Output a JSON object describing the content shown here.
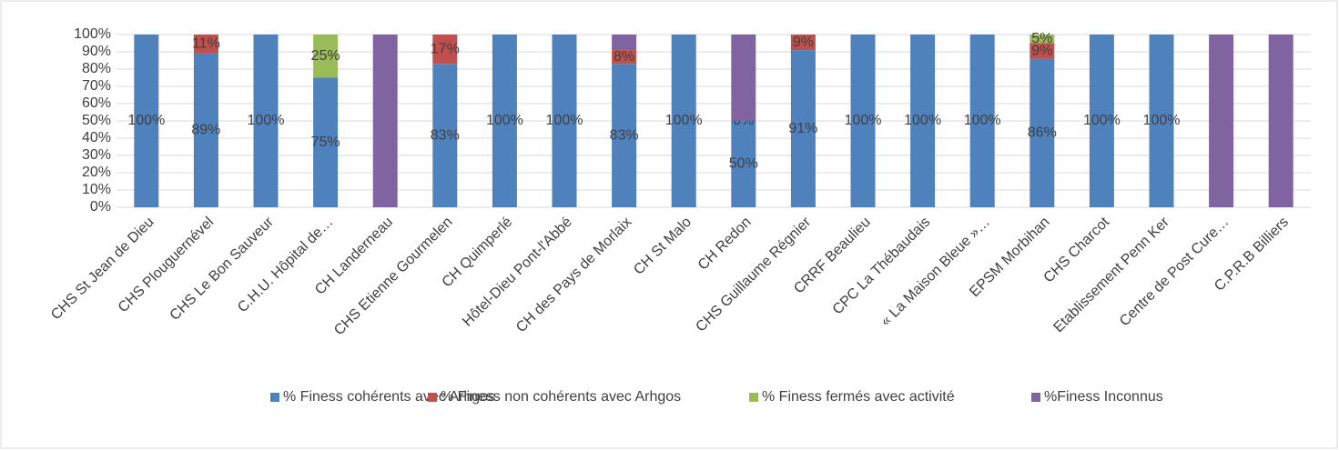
{
  "chart_data": {
    "type": "stacked_bar",
    "categories": [
      "CHS St Jean de Dieu",
      "CHS Plouguernével",
      "CHS Le Bon Sauveur",
      "C.H.U. Hôpital de…",
      "CH Landerneau",
      "CHS Etienne Gourmelen",
      "CH Quimperlé",
      "Hôtel-Dieu Pont-l'Abbé",
      "CH des Pays de Morlaix",
      "CH St Malo",
      "CH Redon",
      "CHS Guillaume Régnier",
      "CRRF Beaulieu",
      "CPC La Thébaudais",
      "« La Maison Bleue »…",
      "EPSM Morbihan",
      "CHS Charcot",
      "Etablissement Penn Ker",
      "Centre de Post Cure…",
      "C.P.R.B Billiers"
    ],
    "series": [
      {
        "name": "% Finess cohérents avec Arhgos",
        "color": "#4f81bd",
        "values": [
          100,
          89,
          100,
          75,
          0,
          83,
          100,
          100,
          83,
          100,
          50,
          91,
          100,
          100,
          100,
          86,
          100,
          100,
          0,
          0
        ],
        "value_labels": [
          "100%",
          "89%",
          "100%",
          "75%",
          null,
          "83%",
          "100%",
          "100%",
          "83%",
          "100%",
          "50%",
          "91%",
          "100%",
          "100%",
          "100%",
          "86%",
          "100%",
          "100%",
          null,
          null
        ]
      },
      {
        "name": "% Finess non cohérents avec Arhgos",
        "color": "#c0504d",
        "values": [
          0,
          11,
          0,
          0,
          0,
          17,
          0,
          0,
          8,
          0,
          0,
          9,
          0,
          0,
          0,
          9,
          0,
          0,
          0,
          0
        ],
        "value_labels": [
          null,
          "11%",
          null,
          null,
          null,
          "17%",
          null,
          null,
          "8%",
          null,
          "0%",
          "9%",
          null,
          null,
          null,
          "9%",
          null,
          null,
          null,
          null
        ]
      },
      {
        "name": "% Finess fermés avec activité",
        "color": "#9bbb59",
        "values": [
          0,
          0,
          0,
          25,
          0,
          0,
          0,
          0,
          0,
          0,
          0,
          0,
          0,
          0,
          0,
          5,
          0,
          0,
          0,
          0
        ],
        "value_labels": [
          null,
          null,
          null,
          "25%",
          null,
          null,
          null,
          null,
          null,
          null,
          null,
          null,
          null,
          null,
          null,
          "5%",
          null,
          null,
          null,
          null
        ]
      },
      {
        "name": "%Finess Inconnus",
        "color": "#8064a2",
        "values": [
          0,
          0,
          0,
          0,
          100,
          0,
          0,
          0,
          9,
          0,
          50,
          0,
          0,
          0,
          0,
          0,
          0,
          0,
          100,
          100
        ],
        "value_labels": [
          null,
          null,
          null,
          null,
          null,
          null,
          null,
          null,
          null,
          null,
          null,
          null,
          null,
          null,
          null,
          null,
          null,
          null,
          null,
          null
        ]
      }
    ],
    "ylim": [
      0,
      100
    ],
    "yticks": [
      {
        "value": 0,
        "label": "0%"
      },
      {
        "value": 10,
        "label": "10%"
      },
      {
        "value": 20,
        "label": "20%"
      },
      {
        "value": 30,
        "label": "30%"
      },
      {
        "value": 40,
        "label": "40%"
      },
      {
        "value": 50,
        "label": "50%"
      },
      {
        "value": 60,
        "label": "60%"
      },
      {
        "value": 70,
        "label": "70%"
      },
      {
        "value": 80,
        "label": "80%"
      },
      {
        "value": 90,
        "label": "90%"
      },
      {
        "value": 100,
        "label": "100%"
      }
    ],
    "grid": true,
    "legend": "bottom"
  }
}
